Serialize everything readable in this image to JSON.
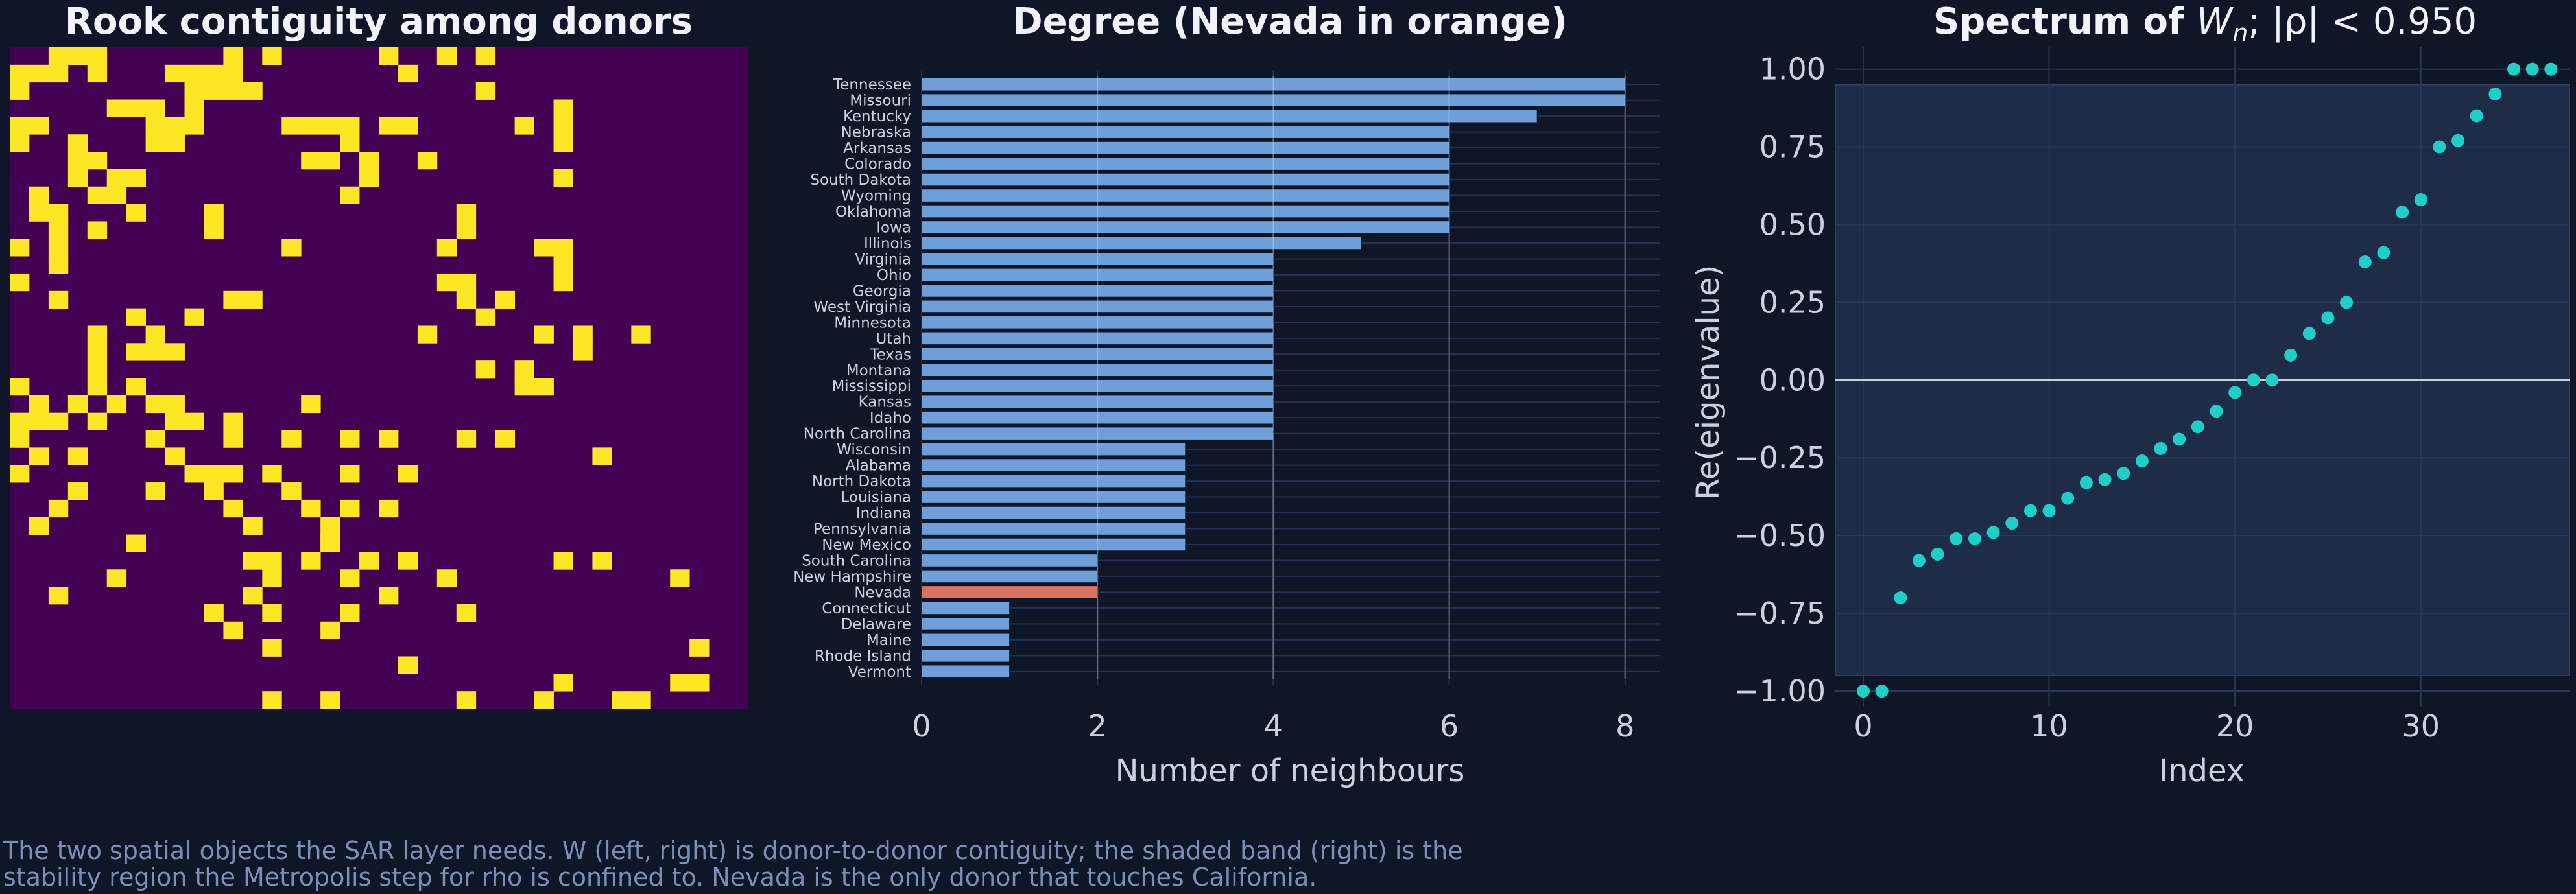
{
  "caption": [
    "The two spatial objects the SAR layer needs. W (left, right) is donor-to-donor contiguity; the shaded band (right) is the",
    "stability region the Metropolis step for rho is confined to. Nevada is the only donor that touches California."
  ],
  "colors": {
    "background": "#0f1628",
    "matrix_off": "#440154",
    "matrix_on": "#fde725",
    "bar": "#6e9fd8",
    "bar_highlight": "#d9735f",
    "point": "#1ecfc5",
    "band": "#1e2c48"
  },
  "chart_data": [
    {
      "type": "heatmap",
      "title": "Rook contiguity among donors",
      "n": 38,
      "ones": [
        [
          0,
          2
        ],
        [
          0,
          3
        ],
        [
          0,
          4
        ],
        [
          0,
          11
        ],
        [
          0,
          13
        ],
        [
          0,
          19
        ],
        [
          0,
          22
        ],
        [
          0,
          24
        ],
        [
          1,
          0
        ],
        [
          1,
          1
        ],
        [
          1,
          2
        ],
        [
          1,
          4
        ],
        [
          1,
          8
        ],
        [
          1,
          9
        ],
        [
          1,
          10
        ],
        [
          1,
          11
        ],
        [
          1,
          20
        ],
        [
          2,
          0
        ],
        [
          2,
          9
        ],
        [
          2,
          10
        ],
        [
          2,
          11
        ],
        [
          2,
          12
        ],
        [
          2,
          24
        ],
        [
          3,
          5
        ],
        [
          3,
          6
        ],
        [
          3,
          7
        ],
        [
          3,
          9
        ],
        [
          3,
          28
        ],
        [
          4,
          0
        ],
        [
          4,
          1
        ],
        [
          4,
          7
        ],
        [
          4,
          8
        ],
        [
          4,
          9
        ],
        [
          4,
          14
        ],
        [
          4,
          15
        ],
        [
          4,
          16
        ],
        [
          4,
          17
        ],
        [
          4,
          19
        ],
        [
          4,
          20
        ],
        [
          4,
          26
        ],
        [
          4,
          28
        ],
        [
          5,
          0
        ],
        [
          5,
          3
        ],
        [
          5,
          7
        ],
        [
          5,
          8
        ],
        [
          5,
          17
        ],
        [
          5,
          28
        ],
        [
          6,
          3
        ],
        [
          6,
          4
        ],
        [
          6,
          15
        ],
        [
          6,
          16
        ],
        [
          6,
          18
        ],
        [
          6,
          21
        ],
        [
          7,
          3
        ],
        [
          7,
          5
        ],
        [
          7,
          6
        ],
        [
          7,
          18
        ],
        [
          7,
          28
        ],
        [
          8,
          1
        ],
        [
          8,
          4
        ],
        [
          8,
          5
        ],
        [
          8,
          17
        ],
        [
          9,
          1
        ],
        [
          9,
          2
        ],
        [
          9,
          6
        ],
        [
          9,
          10
        ],
        [
          9,
          23
        ],
        [
          10,
          2
        ],
        [
          10,
          4
        ],
        [
          10,
          10
        ],
        [
          10,
          23
        ],
        [
          11,
          0
        ],
        [
          11,
          2
        ],
        [
          11,
          14
        ],
        [
          11,
          22
        ],
        [
          11,
          27
        ],
        [
          11,
          28
        ],
        [
          12,
          2
        ],
        [
          12,
          28
        ],
        [
          13,
          0
        ],
        [
          13,
          22
        ],
        [
          13,
          23
        ],
        [
          13,
          28
        ],
        [
          14,
          2
        ],
        [
          14,
          11
        ],
        [
          14,
          12
        ],
        [
          14,
          23
        ],
        [
          14,
          25
        ],
        [
          15,
          6
        ],
        [
          15,
          9
        ],
        [
          15,
          24
        ],
        [
          16,
          4
        ],
        [
          16,
          7
        ],
        [
          16,
          21
        ],
        [
          16,
          27
        ],
        [
          16,
          29
        ],
        [
          16,
          32
        ],
        [
          17,
          4
        ],
        [
          17,
          6
        ],
        [
          17,
          7
        ],
        [
          17,
          8
        ],
        [
          17,
          29
        ],
        [
          18,
          4
        ],
        [
          18,
          24
        ],
        [
          18,
          26
        ],
        [
          19,
          0
        ],
        [
          19,
          4
        ],
        [
          19,
          6
        ],
        [
          19,
          26
        ],
        [
          19,
          27
        ],
        [
          20,
          1
        ],
        [
          20,
          3
        ],
        [
          20,
          5
        ],
        [
          20,
          7
        ],
        [
          20,
          8
        ],
        [
          20,
          15
        ],
        [
          21,
          0
        ],
        [
          21,
          1
        ],
        [
          21,
          2
        ],
        [
          21,
          4
        ],
        [
          21,
          8
        ],
        [
          21,
          9
        ],
        [
          21,
          11
        ],
        [
          22,
          0
        ],
        [
          22,
          7
        ],
        [
          22,
          11
        ],
        [
          22,
          14
        ],
        [
          22,
          17
        ],
        [
          22,
          19
        ],
        [
          22,
          23
        ],
        [
          22,
          25
        ],
        [
          23,
          1
        ],
        [
          23,
          3
        ],
        [
          23,
          8
        ],
        [
          23,
          30
        ],
        [
          24,
          0
        ],
        [
          24,
          9
        ],
        [
          24,
          10
        ],
        [
          24,
          11
        ],
        [
          24,
          13
        ],
        [
          24,
          17
        ],
        [
          24,
          20
        ],
        [
          25,
          3
        ],
        [
          25,
          7
        ],
        [
          25,
          10
        ],
        [
          25,
          14
        ],
        [
          26,
          2
        ],
        [
          26,
          11
        ],
        [
          26,
          15
        ],
        [
          26,
          17
        ],
        [
          26,
          19
        ],
        [
          27,
          1
        ],
        [
          27,
          12
        ],
        [
          27,
          16
        ],
        [
          28,
          6
        ],
        [
          28,
          16
        ],
        [
          28,
          16
        ],
        [
          29,
          12
        ],
        [
          29,
          13
        ],
        [
          29,
          15
        ],
        [
          29,
          18
        ],
        [
          29,
          20
        ],
        [
          29,
          28
        ],
        [
          29,
          30
        ],
        [
          30,
          5
        ],
        [
          30,
          13
        ],
        [
          30,
          17
        ],
        [
          30,
          22
        ],
        [
          30,
          34
        ],
        [
          31,
          2
        ],
        [
          31,
          12
        ],
        [
          31,
          19
        ],
        [
          32,
          10
        ],
        [
          32,
          13
        ],
        [
          32,
          17
        ],
        [
          32,
          23
        ],
        [
          33,
          11
        ],
        [
          33,
          16
        ],
        [
          34,
          13
        ],
        [
          34,
          35
        ],
        [
          35,
          20
        ],
        [
          36,
          28
        ],
        [
          36,
          34
        ],
        [
          36,
          35
        ],
        [
          37,
          13
        ],
        [
          37,
          16
        ],
        [
          37,
          23
        ],
        [
          37,
          27
        ],
        [
          37,
          31
        ],
        [
          37,
          32
        ]
      ]
    },
    {
      "type": "bar",
      "title": "Degree (Nevada in orange)",
      "xlabel": "Number of neighbours",
      "xlim": [
        0,
        8.4
      ],
      "xticks": [
        "0",
        "2",
        "4",
        "6",
        "8"
      ],
      "highlight": "Nevada",
      "categories": [
        "Tennessee",
        "Missouri",
        "Kentucky",
        "Nebraska",
        "Arkansas",
        "Colorado",
        "South Dakota",
        "Wyoming",
        "Oklahoma",
        "Iowa",
        "Illinois",
        "Virginia",
        "Ohio",
        "Georgia",
        "West Virginia",
        "Minnesota",
        "Utah",
        "Texas",
        "Montana",
        "Mississippi",
        "Kansas",
        "Idaho",
        "North Carolina",
        "Wisconsin",
        "Alabama",
        "North Dakota",
        "Louisiana",
        "Indiana",
        "Pennsylvania",
        "New Mexico",
        "South Carolina",
        "New Hampshire",
        "Nevada",
        "Connecticut",
        "Delaware",
        "Maine",
        "Rhode Island",
        "Vermont"
      ],
      "values": [
        8,
        8,
        7,
        6,
        6,
        6,
        6,
        6,
        6,
        6,
        5,
        4,
        4,
        4,
        4,
        4,
        4,
        4,
        4,
        4,
        4,
        4,
        4,
        3,
        3,
        3,
        3,
        3,
        3,
        3,
        2,
        2,
        2,
        1,
        1,
        1,
        1,
        1
      ]
    },
    {
      "type": "scatter",
      "title_prefix": "Spectrum of ",
      "title_symbol": "W",
      "title_sub": "n",
      "title_suffix": "; |ρ| < 0.950",
      "xlabel": "Index",
      "ylabel": "Re(eigenvalue)",
      "xlim": [
        -1.5,
        38
      ],
      "ylim": [
        -1.05,
        1.07
      ],
      "xticks": [
        "0",
        "10",
        "20",
        "30"
      ],
      "yticks": [
        "1.00",
        "0.75",
        "0.50",
        "0.25",
        "0.00",
        "−0.25",
        "−0.50",
        "−0.75",
        "−1.00"
      ],
      "band": [
        -0.95,
        0.95
      ],
      "x": [
        0,
        1,
        2,
        3,
        4,
        5,
        6,
        7,
        8,
        9,
        10,
        11,
        12,
        13,
        14,
        15,
        16,
        17,
        18,
        19,
        20,
        21,
        22,
        23,
        24,
        25,
        26,
        27,
        28,
        29,
        30,
        31,
        32,
        33,
        34,
        35,
        36,
        37
      ],
      "y": [
        -1.0,
        -1.0,
        -0.7,
        -0.58,
        -0.56,
        -0.51,
        -0.51,
        -0.49,
        -0.46,
        -0.42,
        -0.42,
        -0.38,
        -0.33,
        -0.32,
        -0.3,
        -0.26,
        -0.22,
        -0.19,
        -0.15,
        -0.1,
        -0.04,
        0.0,
        0.0,
        0.08,
        0.15,
        0.2,
        0.25,
        0.38,
        0.41,
        0.54,
        0.58,
        0.75,
        0.77,
        0.85,
        0.92,
        1.0,
        1.0,
        1.0
      ]
    }
  ]
}
